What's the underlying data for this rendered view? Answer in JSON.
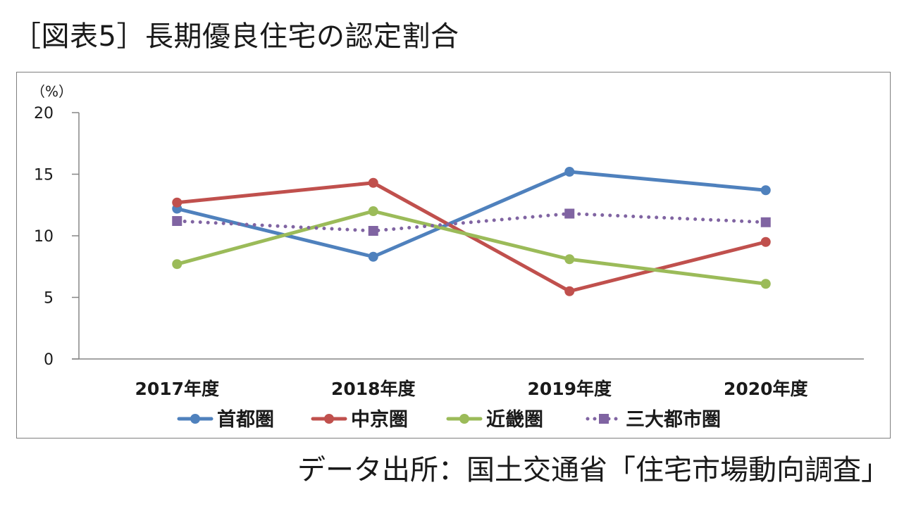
{
  "figure": {
    "title": "［図表5］長期優良住宅の認定割合",
    "source": "データ出所：国土交通省「住宅市場動向調査」"
  },
  "chart_data": {
    "type": "line",
    "title": "",
    "xlabel": "",
    "ylabel": "",
    "y_unit": "（%）",
    "categories": [
      "2017年度",
      "2018年度",
      "2019年度",
      "2020年度"
    ],
    "ylim": [
      0,
      20
    ],
    "yticks": [
      0,
      5,
      10,
      15,
      20
    ],
    "grid": false,
    "legend_position": "bottom",
    "series": [
      {
        "name": "首都圏",
        "values": [
          12.2,
          8.3,
          15.2,
          13.7
        ],
        "color": "#4f81bd",
        "line_style": "solid",
        "marker": "circle"
      },
      {
        "name": "中京圏",
        "values": [
          12.7,
          14.3,
          5.5,
          9.5
        ],
        "color": "#c0504d",
        "line_style": "solid",
        "marker": "circle"
      },
      {
        "name": "近畿圏",
        "values": [
          7.7,
          12.0,
          8.1,
          6.1
        ],
        "color": "#9bbb59",
        "line_style": "solid",
        "marker": "circle"
      },
      {
        "name": "三大都市圏",
        "values": [
          11.2,
          10.4,
          11.8,
          11.1
        ],
        "color": "#8064a2",
        "line_style": "dotted",
        "marker": "square"
      }
    ]
  }
}
